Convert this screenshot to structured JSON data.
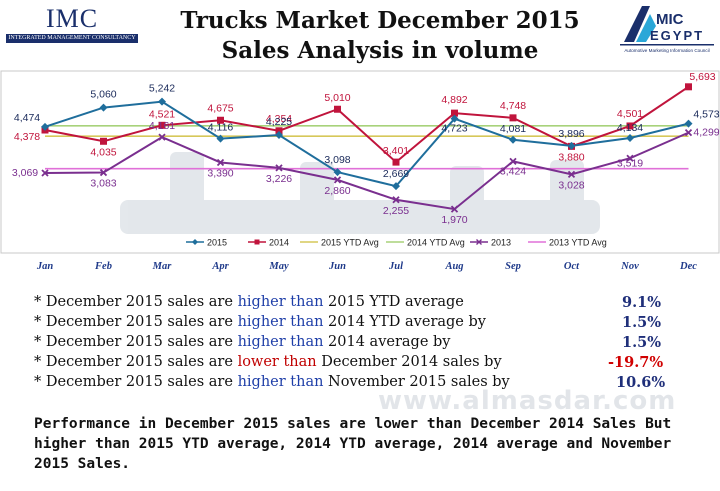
{
  "header": {
    "title_line1": "Trucks Market December 2015",
    "title_line2": "Sales Analysis in volume",
    "logo_left_text": "IMC",
    "logo_left_sub": "INTEGRATED MANAGEMENT CONSULTANCY",
    "logo_right_text": "AMIC EGYPT",
    "logo_right_sub": "Automotive Marketing Information Council"
  },
  "watermark": "www.almasdar.com",
  "colors": {
    "s2015": "#1f6e9c",
    "s2014": "#c0143c",
    "ytd2015": "#d6c85a",
    "ytd2014": "#a8d27a",
    "s2013": "#7a2f8f",
    "ytd2013": "#e070d8"
  },
  "chart_data": {
    "type": "line",
    "categories": [
      "Jan",
      "Feb",
      "Mar",
      "Apr",
      "May",
      "Jun",
      "Jul",
      "Aug",
      "Sep",
      "Oct",
      "Nov",
      "Dec"
    ],
    "series": [
      {
        "name": "2015",
        "values": [
          4474,
          5060,
          5242,
          4116,
          4225,
          3098,
          2669,
          4723,
          4081,
          3896,
          4134,
          4573
        ]
      },
      {
        "name": "2014",
        "values": [
          4378,
          4035,
          4521,
          4675,
          4354,
          5010,
          3401,
          4892,
          4748,
          3880,
          4501,
          5693
        ]
      },
      {
        "name": "2015 YTD Avg",
        "values": [
          4191,
          4191,
          4191,
          4191,
          4191,
          4191,
          4191,
          4191,
          4191,
          4191,
          4191,
          4191
        ]
      },
      {
        "name": "2014 YTD Avg",
        "values": [
          4507,
          4507,
          4507,
          4507,
          4507,
          4507,
          4507,
          4507,
          4507,
          4507,
          4507,
          4507
        ]
      },
      {
        "name": "2013",
        "values": [
          3069,
          3083,
          4161,
          3390,
          3226,
          2860,
          2255,
          1970,
          3424,
          3028,
          3519,
          4299
        ]
      },
      {
        "name": "2013 YTD Avg",
        "values": [
          3200,
          3200,
          3200,
          3200,
          3200,
          3200,
          3200,
          3200,
          3200,
          3200,
          3200,
          3200
        ]
      }
    ],
    "data_labels": {
      "2015": [
        4474,
        5060,
        5242,
        4116,
        4225,
        3098,
        2669,
        4723,
        4081,
        3896,
        4134,
        4573
      ],
      "2014": [
        4378,
        4035,
        4521,
        4675,
        4354,
        5010,
        3401,
        4892,
        4748,
        3880,
        4501,
        5693
      ],
      "2013": [
        3069,
        3083,
        4161,
        3390,
        3226,
        2860,
        2255,
        1970,
        3424,
        3028,
        null,
        4299
      ],
      "2013 YTD Avg": [
        null,
        null,
        null,
        null,
        null,
        null,
        null,
        null,
        null,
        null,
        3519,
        null
      ]
    },
    "ylim": [
      1700,
      5900
    ],
    "grid": false,
    "legend_position": "bottom"
  },
  "notes": [
    {
      "pre": "* December 2015 sales are ",
      "hl": "higher than",
      "post": " 2015 YTD average",
      "pct": "9.1%",
      "red": false
    },
    {
      "pre": "* December 2015 sales are ",
      "hl": "higher than",
      "post": " 2014 YTD average by",
      "pct": "1.5%",
      "red": false
    },
    {
      "pre": "* December 2015 sales are ",
      "hl": "higher than",
      "post": " 2014 average by",
      "pct": "1.5%",
      "red": false
    },
    {
      "pre": "* December 2015 sales are ",
      "hl": "lower than",
      "post": " December 2014 sales by",
      "pct": "-19.7%",
      "red": true
    },
    {
      "pre": "* December 2015 sales are ",
      "hl": "higher than",
      "post": " November 2015 sales by",
      "pct": "10.6%",
      "red": false
    }
  ],
  "summary": "Performance in December 2015 sales are lower than December 2014 Sales But higher than 2015 YTD average, 2014 YTD average, 2014 average and November 2015 Sales."
}
